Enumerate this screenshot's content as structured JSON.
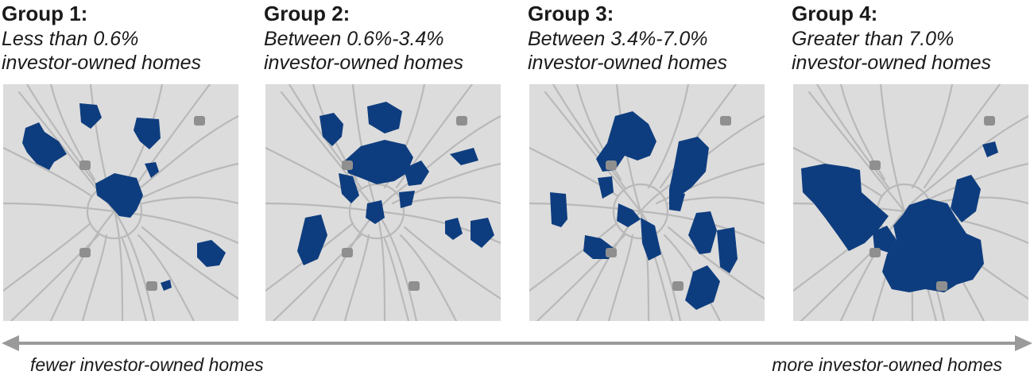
{
  "colors": {
    "area_fill": "#0e3d7f",
    "road": "#b9b9b9",
    "map_bg": "#dcdcdc",
    "arrow": "#9a9a9a",
    "shield": "#8f8f8f"
  },
  "groups": [
    {
      "title": "Group 1:",
      "line1": "Less than 0.6%",
      "line2": "investor-owned homes"
    },
    {
      "title": "Group 2:",
      "line1": "Between 0.6%-3.4%",
      "line2": "investor-owned homes"
    },
    {
      "title": "Group 3:",
      "line1": "Between 3.4%-7.0%",
      "line2": "investor-owned homes"
    },
    {
      "title": "Group 4:",
      "line1": "Greater than 7.0%",
      "line2": "investor-owned homes"
    }
  ],
  "scale": {
    "left_label": "fewer investor-owned homes",
    "right_label": "more investor-owned homes"
  },
  "shields": [
    "interstate-85-shield",
    "interstate-75-shield",
    "interstate-20-shield",
    "interstate-285-shield"
  ]
}
